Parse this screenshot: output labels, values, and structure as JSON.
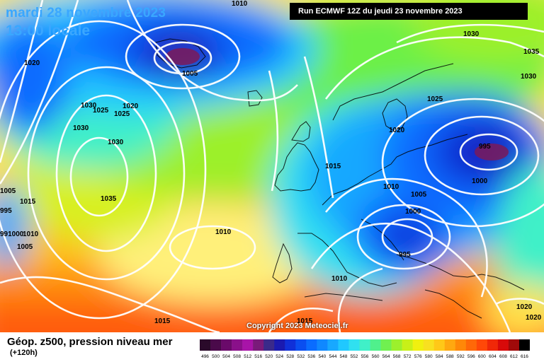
{
  "header": {
    "date_line": "mardi 28 novembre 2023",
    "time_line": "13:00 locale",
    "run_info": "Run ECMWF 12Z du jeudi 23 novembre 2023"
  },
  "copyright": "Copyright 2023 Meteociel.fr",
  "legend": {
    "title": "Géop. z500, pression niveau mer",
    "subtitle": "(+120h)",
    "scale_ticks": [
      "496",
      "500",
      "504",
      "508",
      "512",
      "516",
      "520",
      "524",
      "528",
      "532",
      "536",
      "540",
      "544",
      "548",
      "552",
      "556",
      "560",
      "564",
      "568",
      "572",
      "576",
      "580",
      "584",
      "588",
      "592",
      "596",
      "600",
      "604",
      "608",
      "612",
      "616"
    ],
    "scale_colors": [
      "#2a0a2a",
      "#4a0a4a",
      "#6a0a6a",
      "#8a108a",
      "#a814a8",
      "#7a1a7a",
      "#3a2a8a",
      "#1a1ab0",
      "#1030d8",
      "#0a4ef0",
      "#0a6cff",
      "#1088ff",
      "#18a8ff",
      "#20c8ff",
      "#30e0f0",
      "#40f0c8",
      "#50f08c",
      "#70f050",
      "#9cf02c",
      "#c8f018",
      "#f0f010",
      "#f8e020",
      "#ffc818",
      "#ffa810",
      "#ff8808",
      "#ff6808",
      "#ff4808",
      "#f02808",
      "#d80a0a",
      "#a00a0a",
      "#000000"
    ]
  },
  "pressure_labels": [
    {
      "text": "1010",
      "key": "top"
    },
    {
      "text": "1020",
      "key": "gl1"
    },
    {
      "text": "1005",
      "key": "gl_low"
    },
    {
      "text": "1030",
      "key": "c1"
    },
    {
      "text": "1025",
      "key": "c2"
    },
    {
      "text": "1020",
      "key": "c3"
    },
    {
      "text": "1025",
      "key": "c4"
    },
    {
      "text": "1030",
      "key": "c5"
    },
    {
      "text": "1030",
      "key": "c6"
    },
    {
      "text": "1035",
      "key": "az"
    },
    {
      "text": "1015",
      "key": "w1"
    },
    {
      "text": "1005",
      "key": "w2"
    },
    {
      "text": "995",
      "key": "w3"
    },
    {
      "text": "991000",
      "key": "w4"
    },
    {
      "text": "1010",
      "key": "w5"
    },
    {
      "text": "1005",
      "key": "w6"
    },
    {
      "text": "1010",
      "key": "mid"
    },
    {
      "text": "1015",
      "key": "bl"
    },
    {
      "text": "1015",
      "key": "bm"
    },
    {
      "text": "1015",
      "key": "uk"
    },
    {
      "text": "1010",
      "key": "uk2"
    },
    {
      "text": "1005",
      "key": "ger"
    },
    {
      "text": "1000",
      "key": "ger2"
    },
    {
      "text": "995",
      "key": "ita"
    },
    {
      "text": "1010",
      "key": "med"
    },
    {
      "text": "1020",
      "key": "scan"
    },
    {
      "text": "1025",
      "key": "scan2"
    },
    {
      "text": "1030",
      "key": "ne1"
    },
    {
      "text": "1035",
      "key": "ne2"
    },
    {
      "text": "1030",
      "key": "ne3"
    },
    {
      "text": "995",
      "key": "rus"
    },
    {
      "text": "1000",
      "key": "rus2"
    },
    {
      "text": "1020",
      "key": "se1"
    },
    {
      "text": "1020",
      "key": "se2"
    }
  ]
}
